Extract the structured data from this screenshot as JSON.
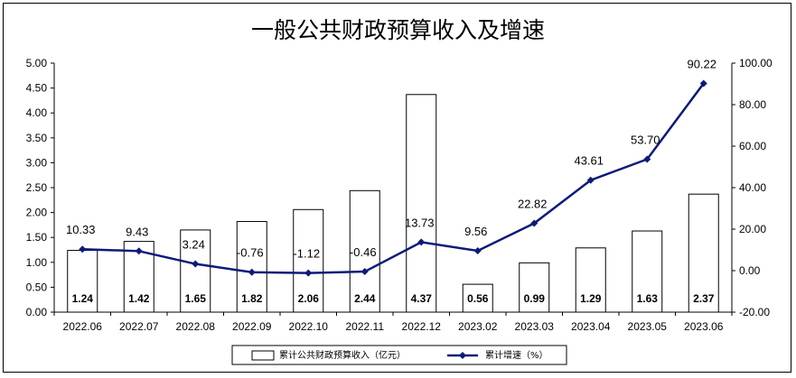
{
  "chart_data": {
    "type": "bar+line",
    "title": "一般公共财政预算收入及增速",
    "categories": [
      "2022.06",
      "2022.07",
      "2022.08",
      "2022.09",
      "2022.10",
      "2022.11",
      "2022.12",
      "2023.02",
      "2023.03",
      "2023.04",
      "2023.05",
      "2023.06"
    ],
    "series": [
      {
        "name": "累计公共财政预算收入（亿元）",
        "type": "bar",
        "axis": "left",
        "values": [
          1.24,
          1.42,
          1.65,
          1.82,
          2.06,
          2.44,
          4.37,
          0.56,
          0.99,
          1.29,
          1.63,
          2.37
        ],
        "labels": [
          "1.24",
          "1.42",
          "1.65",
          "1.82",
          "2.06",
          "2.44",
          "4.37",
          "0.56",
          "0.99",
          "1.29",
          "1.63",
          "2.37"
        ]
      },
      {
        "name": "累计增速（%）",
        "type": "line",
        "axis": "right",
        "values": [
          10.33,
          9.43,
          3.24,
          -0.76,
          -1.12,
          -0.46,
          13.73,
          9.56,
          22.82,
          43.61,
          53.7,
          90.22
        ],
        "labels": [
          "10.33",
          "9.43",
          "3.24",
          "-0.76",
          "-1.12",
          "-0.46",
          "13.73",
          "9.56",
          "22.82",
          "43.61",
          "53.70",
          "90.22"
        ],
        "color": "#0d1a78"
      }
    ],
    "y_left": {
      "min": 0,
      "max": 5,
      "step": 0.5,
      "tick_labels": [
        "0.00",
        "0.50",
        "1.00",
        "1.50",
        "2.00",
        "2.50",
        "3.00",
        "3.50",
        "4.00",
        "4.50",
        "5.00"
      ]
    },
    "y_right": {
      "min": -20,
      "max": 100,
      "step": 20,
      "tick_labels": [
        "-20.00",
        "0.00",
        "20.00",
        "40.00",
        "60.00",
        "80.00",
        "100.00"
      ]
    },
    "grid": false,
    "legend_position": "bottom"
  }
}
